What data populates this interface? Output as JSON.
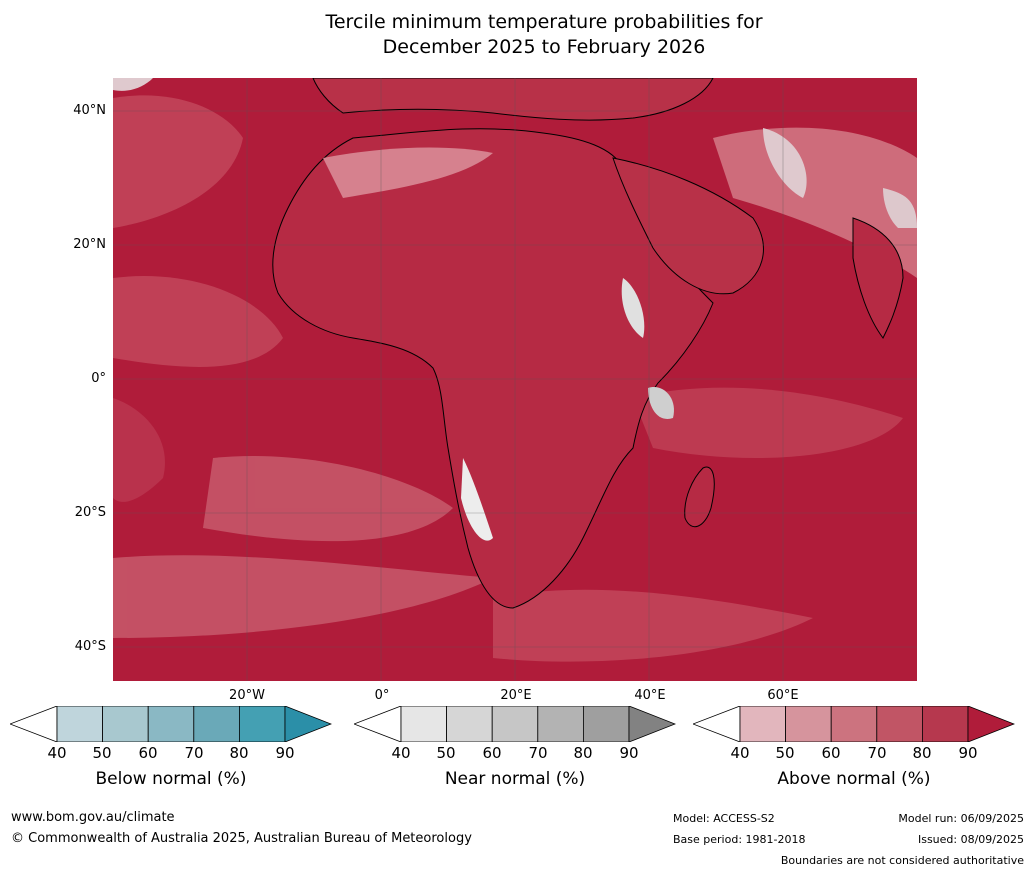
{
  "title": {
    "line1": "Tercile minimum temperature probabilities for",
    "line2": "December 2025 to February 2026"
  },
  "map": {
    "lat_labels": [
      "40°N",
      "20°N",
      "0°",
      "20°S",
      "40°S"
    ],
    "lon_labels": [
      "20°W",
      "0°",
      "20°E",
      "40°E",
      "60°E"
    ],
    "dominant_color": "#b01c3a",
    "land_border_color": "#808080",
    "coastline_color": "#000000"
  },
  "legends": [
    {
      "title": "Below normal (%)",
      "ticks": [
        "40",
        "50",
        "60",
        "70",
        "80",
        "90"
      ],
      "colors": [
        "#bfd5dc",
        "#a8c8cf",
        "#8ab8c4",
        "#6aa9b8",
        "#44a0b3",
        "#2b8fa8"
      ]
    },
    {
      "title": "Near normal (%)",
      "ticks": [
        "40",
        "50",
        "60",
        "70",
        "80",
        "90"
      ],
      "colors": [
        "#e6e6e6",
        "#d6d6d6",
        "#c6c6c6",
        "#b3b3b3",
        "#9f9f9f",
        "#828282"
      ]
    },
    {
      "title": "Above normal (%)",
      "ticks": [
        "40",
        "50",
        "60",
        "70",
        "80",
        "90"
      ],
      "colors": [
        "#e2b6bd",
        "#d6949d",
        "#cc737f",
        "#c15565",
        "#b6384e",
        "#b01c3a"
      ]
    }
  ],
  "footer": {
    "website": "www.bom.gov.au/climate",
    "copyright": "© Commonwealth of Australia 2025, Australian Bureau of Meteorology",
    "model": "Model: ACCESS-S2",
    "base_period": "Base period: 1981-2018",
    "model_run": "Model run: 06/09/2025",
    "issued": "Issued: 08/09/2025",
    "disclaimer": "Boundaries are not considered authoritative"
  }
}
